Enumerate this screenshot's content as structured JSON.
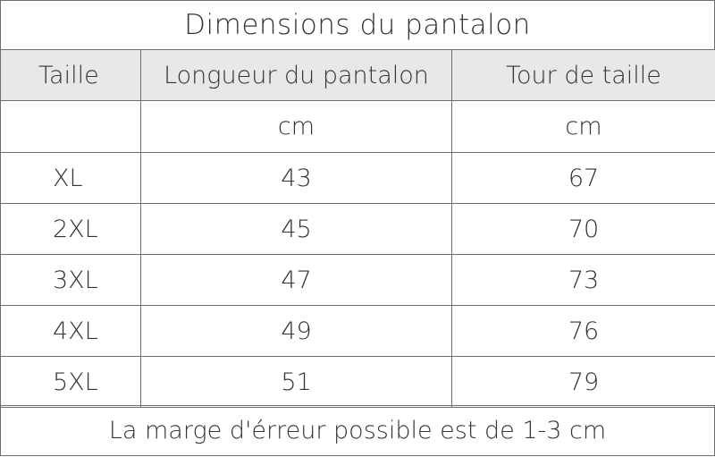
{
  "title": "Dimensions du pantalon",
  "headers": {
    "size": "Taille",
    "length": "Longueur du pantalon",
    "waist": "Tour de taille"
  },
  "units": {
    "size": "",
    "length": "cm",
    "waist": "cm"
  },
  "rows": [
    {
      "size": "XL",
      "length": "43",
      "waist": "67"
    },
    {
      "size": "2XL",
      "length": "45",
      "waist": "70"
    },
    {
      "size": "3XL",
      "length": "47",
      "waist": "73"
    },
    {
      "size": "4XL",
      "length": "49",
      "waist": "76"
    },
    {
      "size": "5XL",
      "length": "51",
      "waist": "79"
    }
  ],
  "footer": "La marge d'érreur possible est de 1-3 cm",
  "colors": {
    "header_bg": "#e8e8e8",
    "border": "#6e6e6e",
    "text": "#333333"
  }
}
